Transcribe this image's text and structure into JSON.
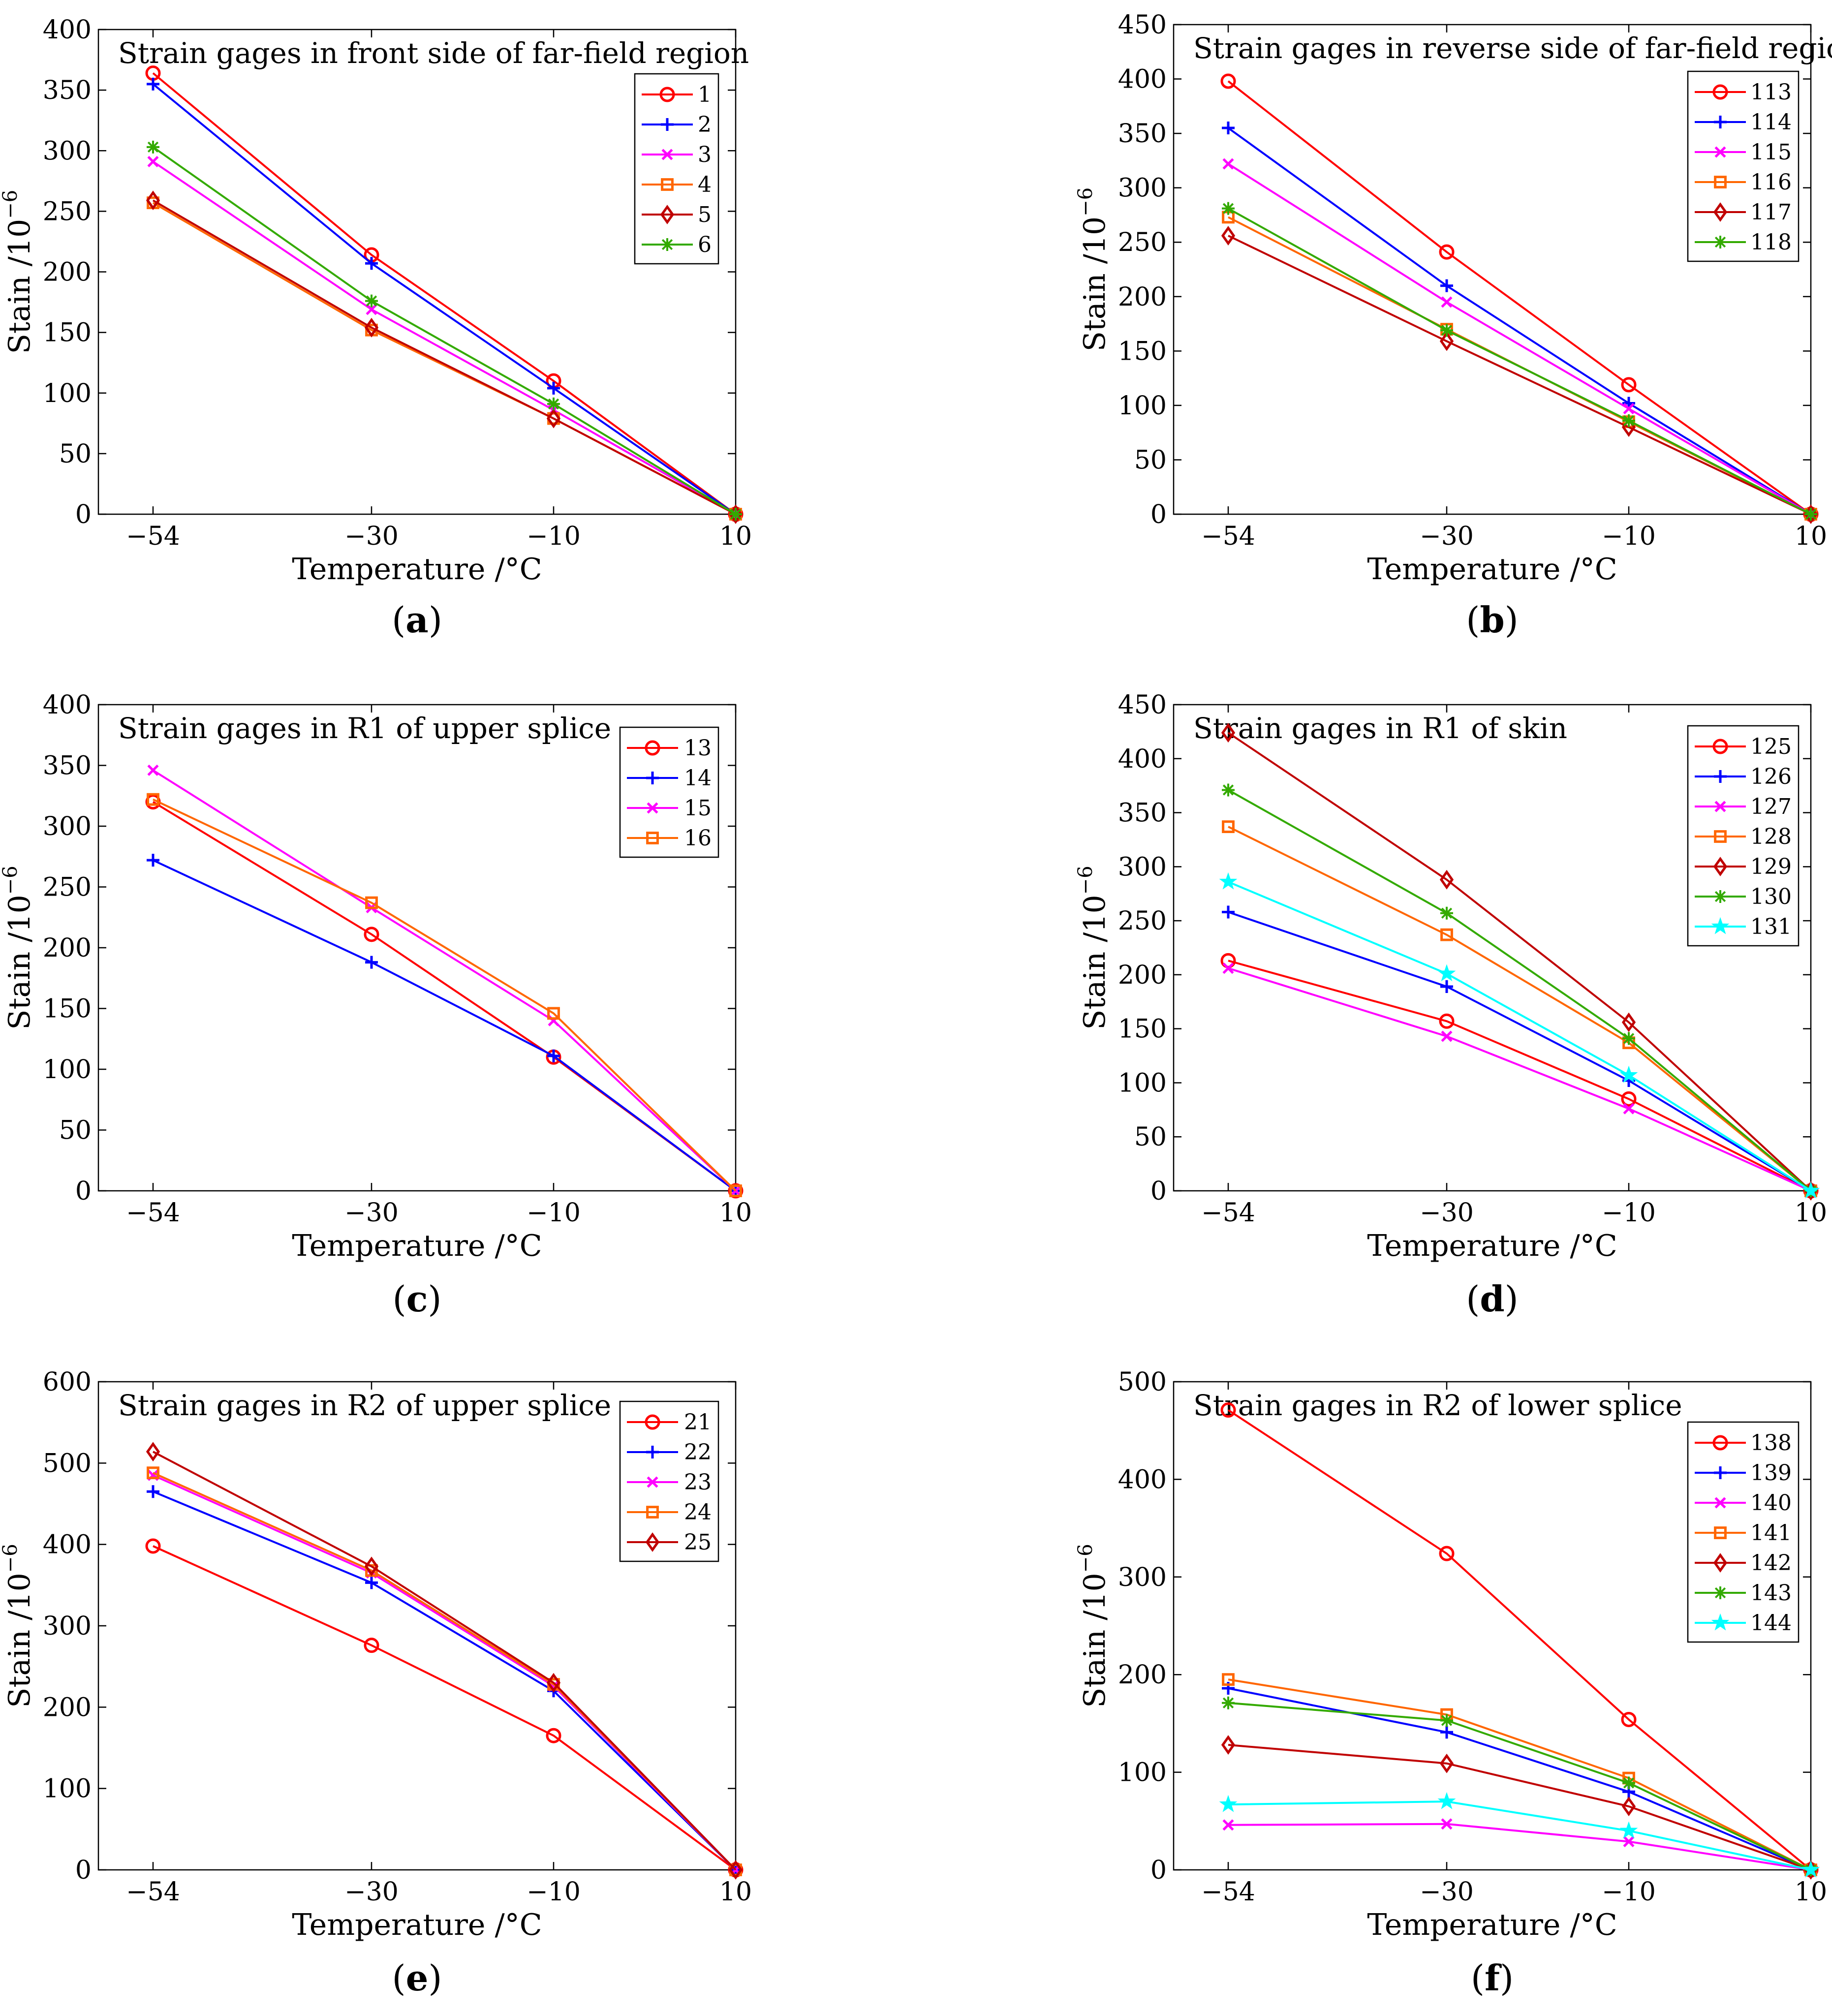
{
  "chart_data": [
    {
      "type": "line",
      "panel_label": "a",
      "title": "Strain gages in front side of far-field region",
      "xlabel": "Temperature /°C",
      "ylabel": "Stain /10",
      "ylabel_exponent": "−6",
      "x": [
        -54,
        -30,
        -10,
        10
      ],
      "x_tick_labels": [
        "−54",
        "−30",
        "−10",
        "10"
      ],
      "ylim": [
        0,
        400
      ],
      "y_ticks": [
        0,
        50,
        100,
        150,
        200,
        250,
        300,
        350,
        400
      ],
      "legend_position": "top-right",
      "series": [
        {
          "name": "1",
          "color": "#ff0000",
          "marker": "circle",
          "values": [
            364,
            214,
            110,
            0
          ]
        },
        {
          "name": "2",
          "color": "#0000ff",
          "marker": "plus",
          "values": [
            355,
            207,
            104,
            0
          ]
        },
        {
          "name": "3",
          "color": "#ff00ff",
          "marker": "x",
          "values": [
            291,
            169,
            86,
            0
          ]
        },
        {
          "name": "4",
          "color": "#ff6600",
          "marker": "square",
          "values": [
            257,
            152,
            79,
            0
          ]
        },
        {
          "name": "5",
          "color": "#c00000",
          "marker": "diamond",
          "values": [
            259,
            154,
            79,
            0
          ]
        },
        {
          "name": "6",
          "color": "#33aa00",
          "marker": "asterisk",
          "values": [
            303,
            176,
            91,
            0
          ]
        }
      ]
    },
    {
      "type": "line",
      "panel_label": "b",
      "title": "Strain gages in reverse side of far-field region",
      "xlabel": "Temperature /°C",
      "ylabel": "Stain /10",
      "ylabel_exponent": "−6",
      "x": [
        -54,
        -30,
        -10,
        10
      ],
      "x_tick_labels": [
        "−54",
        "−30",
        "−10",
        "10"
      ],
      "ylim": [
        0,
        450
      ],
      "y_ticks": [
        0,
        50,
        100,
        150,
        200,
        250,
        300,
        350,
        400,
        450
      ],
      "legend_position": "top-right",
      "series": [
        {
          "name": "113",
          "color": "#ff0000",
          "marker": "circle",
          "values": [
            398,
            241,
            119,
            0
          ]
        },
        {
          "name": "114",
          "color": "#0000ff",
          "marker": "plus",
          "values": [
            355,
            210,
            102,
            0
          ]
        },
        {
          "name": "115",
          "color": "#ff00ff",
          "marker": "x",
          "values": [
            322,
            195,
            97,
            0
          ]
        },
        {
          "name": "116",
          "color": "#ff6600",
          "marker": "square",
          "values": [
            273,
            170,
            85,
            0
          ]
        },
        {
          "name": "117",
          "color": "#c00000",
          "marker": "diamond",
          "values": [
            256,
            159,
            80,
            0
          ]
        },
        {
          "name": "118",
          "color": "#33aa00",
          "marker": "asterisk",
          "values": [
            281,
            169,
            86,
            0
          ]
        }
      ]
    },
    {
      "type": "line",
      "panel_label": "c",
      "title": "Strain gages in R1 of upper splice",
      "xlabel": "Temperature /°C",
      "ylabel": "Stain /10",
      "ylabel_exponent": "−6",
      "x": [
        -54,
        -30,
        -10,
        10
      ],
      "x_tick_labels": [
        "−54",
        "−30",
        "−10",
        "10"
      ],
      "ylim": [
        0,
        400
      ],
      "y_ticks": [
        0,
        50,
        100,
        150,
        200,
        250,
        300,
        350,
        400
      ],
      "legend_position": "top-right",
      "series": [
        {
          "name": "13",
          "color": "#ff0000",
          "marker": "circle",
          "values": [
            320,
            211,
            110,
            0
          ]
        },
        {
          "name": "14",
          "color": "#0000ff",
          "marker": "plus",
          "values": [
            272,
            188,
            111,
            0
          ]
        },
        {
          "name": "15",
          "color": "#ff00ff",
          "marker": "x",
          "values": [
            346,
            233,
            140,
            0
          ]
        },
        {
          "name": "16",
          "color": "#ff6600",
          "marker": "square",
          "values": [
            322,
            237,
            146,
            0
          ]
        }
      ]
    },
    {
      "type": "line",
      "panel_label": "d",
      "title": "Strain gages in R1 of skin",
      "xlabel": "Temperature /°C",
      "ylabel": "Stain /10",
      "ylabel_exponent": "−6",
      "x": [
        -54,
        -30,
        -10,
        10
      ],
      "x_tick_labels": [
        "−54",
        "−30",
        "−10",
        "10"
      ],
      "ylim": [
        0,
        450
      ],
      "y_ticks": [
        0,
        50,
        100,
        150,
        200,
        250,
        300,
        350,
        400,
        450
      ],
      "legend_position": "top-right",
      "series": [
        {
          "name": "125",
          "color": "#ff0000",
          "marker": "circle",
          "values": [
            213,
            157,
            85,
            0
          ]
        },
        {
          "name": "126",
          "color": "#0000ff",
          "marker": "plus",
          "values": [
            258,
            189,
            102,
            0
          ]
        },
        {
          "name": "127",
          "color": "#ff00ff",
          "marker": "x",
          "values": [
            206,
            143,
            76,
            0
          ]
        },
        {
          "name": "128",
          "color": "#ff6600",
          "marker": "square",
          "values": [
            337,
            237,
            137,
            0
          ]
        },
        {
          "name": "129",
          "color": "#c00000",
          "marker": "diamond",
          "values": [
            424,
            288,
            156,
            0
          ]
        },
        {
          "name": "130",
          "color": "#33aa00",
          "marker": "asterisk",
          "values": [
            371,
            257,
            141,
            0
          ]
        },
        {
          "name": "131",
          "color": "#00ffff",
          "marker": "star",
          "values": [
            286,
            201,
            107,
            0
          ]
        }
      ]
    },
    {
      "type": "line",
      "panel_label": "e",
      "title": "Strain gages in R2 of upper splice",
      "xlabel": "Temperature /°C",
      "ylabel": "Stain /10",
      "ylabel_exponent": "−6",
      "x": [
        -54,
        -30,
        -10,
        10
      ],
      "x_tick_labels": [
        "−54",
        "−30",
        "−10",
        "10"
      ],
      "ylim": [
        0,
        600
      ],
      "y_ticks": [
        0,
        100,
        200,
        300,
        400,
        500,
        600
      ],
      "legend_position": "top-right",
      "series": [
        {
          "name": "21",
          "color": "#ff0000",
          "marker": "circle",
          "values": [
            398,
            276,
            165,
            0
          ]
        },
        {
          "name": "22",
          "color": "#0000ff",
          "marker": "plus",
          "values": [
            465,
            353,
            220,
            0
          ]
        },
        {
          "name": "23",
          "color": "#ff00ff",
          "marker": "x",
          "values": [
            485,
            365,
            226,
            0
          ]
        },
        {
          "name": "24",
          "color": "#ff6600",
          "marker": "square",
          "values": [
            488,
            368,
            228,
            0
          ]
        },
        {
          "name": "25",
          "color": "#c00000",
          "marker": "diamond",
          "values": [
            514,
            373,
            230,
            0
          ]
        }
      ]
    },
    {
      "type": "line",
      "panel_label": "f",
      "title": "Strain gages in R2 of lower splice",
      "xlabel": "Temperature /°C",
      "ylabel": "Stain /10",
      "ylabel_exponent": "−6",
      "x": [
        -54,
        -30,
        -10,
        10
      ],
      "x_tick_labels": [
        "−54",
        "−30",
        "−10",
        "10"
      ],
      "ylim": [
        0,
        500
      ],
      "y_ticks": [
        0,
        100,
        200,
        300,
        400,
        500
      ],
      "legend_position": "top-right",
      "series": [
        {
          "name": "138",
          "color": "#ff0000",
          "marker": "circle",
          "values": [
            471,
            324,
            154,
            0
          ]
        },
        {
          "name": "139",
          "color": "#0000ff",
          "marker": "plus",
          "values": [
            186,
            141,
            80,
            0
          ]
        },
        {
          "name": "140",
          "color": "#ff00ff",
          "marker": "x",
          "values": [
            46,
            47,
            29,
            0
          ]
        },
        {
          "name": "141",
          "color": "#ff6600",
          "marker": "square",
          "values": [
            195,
            159,
            94,
            0
          ]
        },
        {
          "name": "142",
          "color": "#c00000",
          "marker": "diamond",
          "values": [
            128,
            109,
            65,
            0
          ]
        },
        {
          "name": "143",
          "color": "#33aa00",
          "marker": "asterisk",
          "values": [
            171,
            153,
            89,
            0
          ]
        },
        {
          "name": "144",
          "color": "#00ffff",
          "marker": "star",
          "values": [
            67,
            70,
            40,
            0
          ]
        }
      ]
    }
  ]
}
